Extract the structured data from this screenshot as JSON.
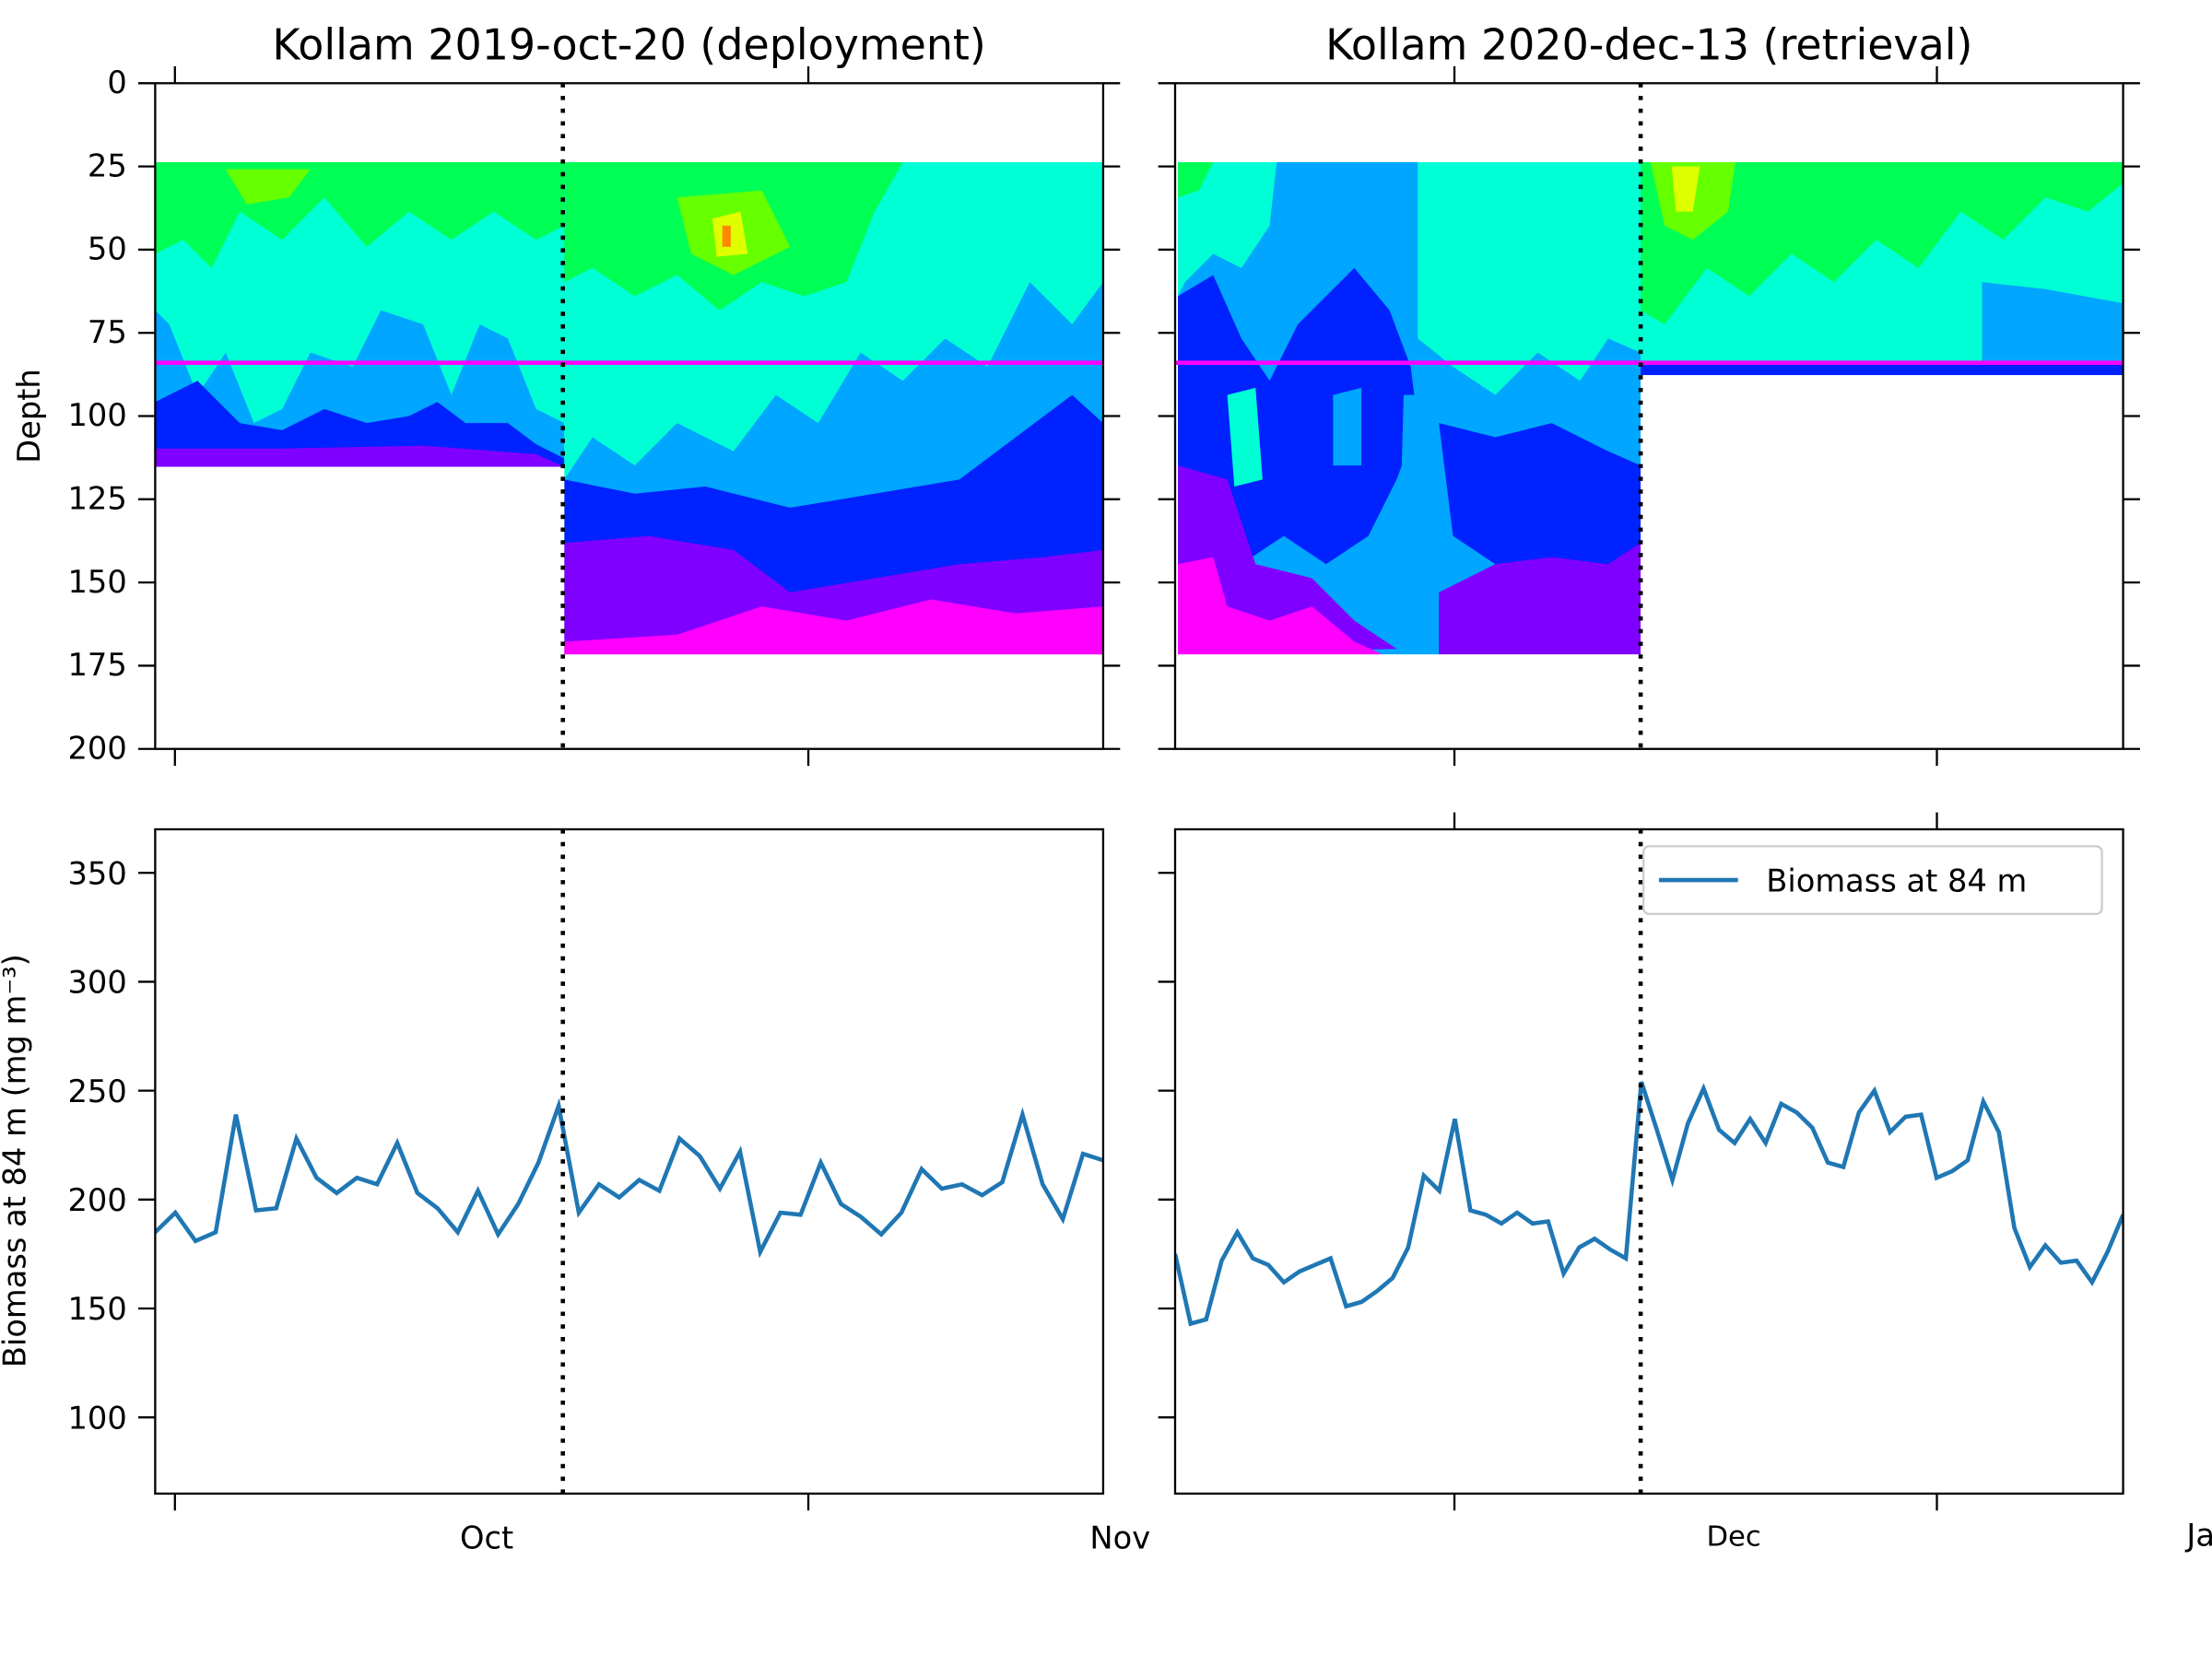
{
  "chart_data": [
    {
      "type": "heatmap",
      "title": "Kollam 2019-oct-20 (deployment)",
      "ylabel": "Depth",
      "ylim": [
        200,
        0
      ],
      "yticks": [
        "0",
        "25",
        "50",
        "75",
        "100",
        "125",
        "150",
        "175",
        "200"
      ],
      "reference_depth_m": 84,
      "reference_line_color": "#ff00ff",
      "event_marker": "dotted vertical line",
      "data_bottom_depth_before_m": 116,
      "data_bottom_depth_after_m": 172
    },
    {
      "type": "heatmap",
      "title": "Kollam 2020-dec-13 (retrieval)",
      "ylim": [
        200,
        0
      ],
      "reference_depth_m": 84,
      "reference_line_color": "#ff00ff",
      "event_marker": "dotted vertical line",
      "data_bottom_depth_before_m": 172,
      "data_bottom_depth_after_m": 88
    },
    {
      "type": "line",
      "ylabel": "Biomass at 84 m (mg m⁻³)",
      "ylim": [
        65,
        370
      ],
      "yticks": [
        "100",
        "150",
        "200",
        "250",
        "300",
        "350"
      ],
      "xticks": [
        "Oct",
        "Nov"
      ],
      "series": [
        {
          "values": [
            185,
            194,
            181,
            185,
            239,
            195,
            196,
            228,
            210,
            203,
            210,
            207,
            226,
            203,
            196,
            185,
            204,
            184,
            198,
            217,
            243,
            194,
            207,
            201,
            209,
            204,
            228,
            220,
            205,
            222,
            176,
            194,
            193,
            217,
            198,
            192,
            184,
            194,
            214,
            205,
            207,
            202,
            208,
            239,
            207,
            191,
            221,
            218
          ]
        }
      ]
    },
    {
      "type": "line",
      "ylim": [
        65,
        370
      ],
      "xticks": [
        "Dec",
        "Ja"
      ],
      "legend": "top-right",
      "series": [
        {
          "name": "Biomass at 84 m",
          "values": [
            175,
            143,
            145,
            172,
            185,
            173,
            170,
            162,
            167,
            170,
            173,
            151,
            153,
            158,
            164,
            178,
            211,
            204,
            237,
            195,
            193,
            189,
            194,
            189,
            190,
            166,
            178,
            182,
            177,
            173,
            254,
            232,
            209,
            235,
            251,
            232,
            226,
            237,
            226,
            244,
            240,
            233,
            217,
            215,
            240,
            250,
            231,
            238,
            239,
            210,
            213,
            218,
            245,
            231,
            187,
            169,
            179,
            171,
            172,
            162,
            176,
            193
          ]
        }
      ]
    }
  ],
  "colors": {
    "line": "#1f77b4",
    "contour_levels": [
      "#ff00ff",
      "#8000ff",
      "#0022ff",
      "#00a6ff",
      "#00ffd5",
      "#00ff55",
      "#66ff00",
      "#ddff00",
      "#ff8800"
    ]
  }
}
